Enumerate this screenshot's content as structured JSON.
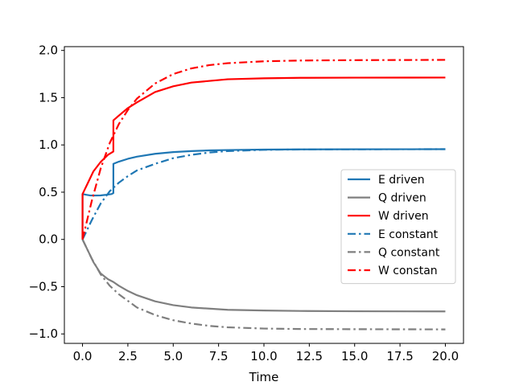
{
  "chart_data": {
    "type": "line",
    "title": "",
    "xlabel": "Time",
    "ylabel": "",
    "xlim": [
      -1,
      21
    ],
    "ylim": [
      -1.1,
      2.04
    ],
    "xticks": [
      "0.0",
      "2.5",
      "5.0",
      "7.5",
      "10.0",
      "12.5",
      "15.0",
      "17.5",
      "20.0"
    ],
    "yticks": [
      "−1.0",
      "−0.5",
      "0.0",
      "0.5",
      "1.0",
      "1.5",
      "2.0"
    ],
    "legend_position": "center-right",
    "grid": false,
    "series": [
      {
        "name": "E driven",
        "color": "#1f77b4",
        "style": "solid",
        "x": [
          0,
          0.001,
          0.2,
          0.4,
          0.7,
          1.0,
          1.3,
          1.6,
          1.7,
          1.701,
          2.0,
          2.5,
          3.0,
          4.0,
          5.0,
          6.0,
          7.0,
          8.0,
          10.0,
          12.0,
          15.0,
          20.0
        ],
        "y": [
          0,
          0.48,
          0.473,
          0.466,
          0.465,
          0.466,
          0.472,
          0.48,
          0.49,
          0.8,
          0.823,
          0.853,
          0.876,
          0.906,
          0.924,
          0.935,
          0.942,
          0.946,
          0.951,
          0.953,
          0.954,
          0.955
        ]
      },
      {
        "name": "Q driven",
        "color": "#7f7f7f",
        "style": "solid",
        "x": [
          0,
          0.3,
          0.6,
          1.0,
          1.4,
          1.7,
          2.0,
          2.5,
          3.0,
          4.0,
          5.0,
          6.0,
          8.0,
          10.0,
          12.0,
          15.0,
          20.0
        ],
        "y": [
          0,
          -0.12,
          -0.24,
          -0.36,
          -0.42,
          -0.45,
          -0.49,
          -0.545,
          -0.59,
          -0.655,
          -0.695,
          -0.72,
          -0.745,
          -0.752,
          -0.757,
          -0.76,
          -0.762
        ]
      },
      {
        "name": "W driven",
        "color": "#ff0000",
        "style": "solid",
        "x": [
          0,
          0.001,
          0.3,
          0.6,
          1.0,
          1.4,
          1.7,
          1.701,
          2.0,
          2.5,
          3.0,
          4.0,
          5.0,
          6.0,
          8.0,
          10.0,
          12.0,
          15.0,
          20.0
        ],
        "y": [
          0,
          0.48,
          0.6,
          0.72,
          0.82,
          0.895,
          0.93,
          1.26,
          1.31,
          1.39,
          1.45,
          1.56,
          1.62,
          1.66,
          1.695,
          1.705,
          1.71,
          1.712,
          1.713
        ]
      },
      {
        "name": "E constant",
        "color": "#1f77b4",
        "style": "dashdot",
        "x": [
          0,
          0.5,
          1.0,
          1.5,
          2.0,
          2.5,
          3.0,
          4.0,
          5.0,
          6.0,
          7.0,
          8.0,
          10.0,
          12.0,
          15.0,
          20.0
        ],
        "y": [
          0,
          0.2,
          0.38,
          0.51,
          0.6,
          0.67,
          0.73,
          0.8,
          0.86,
          0.895,
          0.92,
          0.935,
          0.948,
          0.952,
          0.954,
          0.955
        ]
      },
      {
        "name": "Q constant",
        "color": "#7f7f7f",
        "style": "dashdot",
        "x": [
          0,
          0.5,
          1.0,
          1.5,
          2.0,
          2.5,
          3.0,
          4.0,
          5.0,
          6.0,
          7.0,
          8.0,
          10.0,
          12.0,
          15.0,
          20.0
        ],
        "y": [
          0,
          -0.2,
          -0.37,
          -0.49,
          -0.58,
          -0.65,
          -0.72,
          -0.8,
          -0.855,
          -0.89,
          -0.915,
          -0.93,
          -0.943,
          -0.948,
          -0.95,
          -0.952
        ]
      },
      {
        "name": "W constan",
        "color": "#ff0000",
        "style": "dashdot",
        "x": [
          0,
          0.5,
          1.0,
          1.5,
          2.0,
          2.5,
          3.0,
          4.0,
          5.0,
          6.0,
          7.0,
          8.0,
          10.0,
          12.0,
          15.0,
          20.0
        ],
        "y": [
          0,
          0.4,
          0.75,
          1.02,
          1.22,
          1.37,
          1.49,
          1.65,
          1.75,
          1.81,
          1.845,
          1.865,
          1.885,
          1.893,
          1.897,
          1.9
        ]
      }
    ]
  }
}
